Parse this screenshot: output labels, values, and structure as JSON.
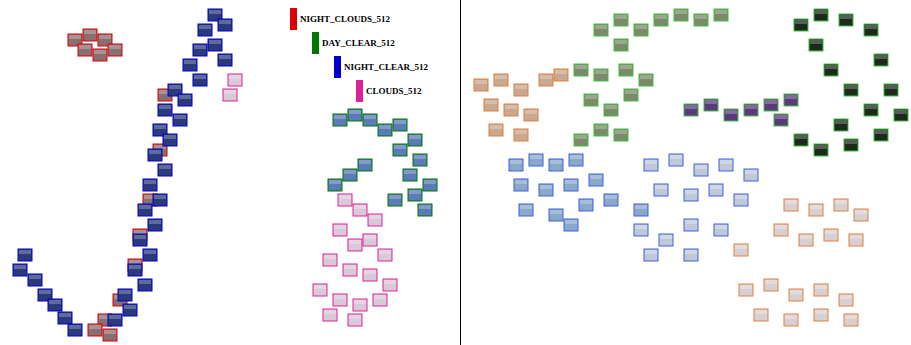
{
  "chart_data": [
    {
      "type": "scatter",
      "xlim": [
        0,
        460
      ],
      "ylim": [
        0,
        345
      ],
      "tick_labels": false,
      "legend": "top",
      "series": [
        {
          "name": "NIGHT_CLOUDS_512",
          "color": "#dd0000",
          "marker": "square",
          "x": [
            75,
            90,
            105,
            115,
            85,
            100,
            165,
            160,
            150,
            140,
            135,
            120,
            105,
            95,
            110
          ],
          "values": [
            305,
            310,
            305,
            295,
            295,
            290,
            250,
            195,
            145,
            110,
            80,
            45,
            25,
            15,
            10
          ]
        },
        {
          "name": "DAY_CLEAR_512",
          "color": "#007700",
          "marker": "square",
          "x": [
            340,
            355,
            370,
            385,
            400,
            415,
            400,
            420,
            410,
            430,
            415,
            425,
            395,
            335,
            350,
            365
          ],
          "values": [
            225,
            230,
            225,
            215,
            220,
            205,
            195,
            185,
            170,
            160,
            150,
            135,
            145,
            160,
            170,
            180
          ]
        },
        {
          "name": "NIGHT_CLEAR_512",
          "color": "#0000cc",
          "marker": "square",
          "x": [
            215,
            225,
            205,
            215,
            200,
            225,
            190,
            200,
            175,
            185,
            165,
            180,
            160,
            170,
            155,
            165,
            150,
            160,
            145,
            155,
            140,
            150,
            135,
            145,
            125,
            130,
            115,
            25,
            20,
            35,
            45,
            55,
            65,
            75
          ],
          "values": [
            330,
            320,
            315,
            300,
            295,
            285,
            280,
            265,
            255,
            245,
            235,
            225,
            215,
            205,
            190,
            175,
            160,
            145,
            135,
            120,
            105,
            90,
            75,
            60,
            50,
            35,
            25,
            90,
            75,
            65,
            50,
            40,
            27,
            15
          ]
        },
        {
          "name": "CLOUDS_512",
          "color": "#dd2299",
          "marker": "square",
          "x": [
            345,
            360,
            375,
            340,
            355,
            370,
            385,
            330,
            350,
            370,
            390,
            320,
            340,
            360,
            380,
            330,
            355,
            235,
            230
          ],
          "values": [
            145,
            135,
            125,
            115,
            100,
            105,
            90,
            85,
            75,
            70,
            60,
            55,
            45,
            40,
            45,
            30,
            25,
            265,
            250
          ]
        }
      ]
    },
    {
      "type": "scatter",
      "xlim": [
        0,
        450
      ],
      "ylim": [
        0,
        345
      ],
      "tick_labels": false,
      "series": [
        {
          "color": "#40c040",
          "marker": "square",
          "x": [
            340,
            360,
            385,
            410,
            420,
            430,
            440,
            420,
            390,
            360,
            340,
            410,
            380,
            355,
            370,
            390
          ],
          "values": [
            320,
            330,
            325,
            315,
            285,
            255,
            230,
            210,
            200,
            195,
            205,
            235,
            220,
            300,
            275,
            255
          ]
        },
        {
          "color": "#40c040",
          "marker": "square",
          "x": [
            230,
            250,
            270,
            290,
            310,
            330,
            320
          ],
          "values": [
            235,
            240,
            230,
            235,
            240,
            245,
            225
          ]
        },
        {
          "color": "#40c040",
          "marker": "square",
          "x": [
            140,
            160,
            180,
            200,
            220,
            240,
            260,
            160,
            120,
            140,
            165,
            185,
            130,
            150,
            170,
            140,
            160,
            120
          ],
          "values": [
            315,
            325,
            315,
            325,
            330,
            325,
            330,
            300,
            275,
            270,
            275,
            265,
            245,
            235,
            250,
            215,
            210,
            205
          ]
        },
        {
          "color": "#e08040",
          "marker": "square",
          "x": [
            20,
            40,
            60,
            30,
            50,
            70,
            35,
            60,
            85,
            100
          ],
          "values": [
            260,
            265,
            255,
            240,
            235,
            230,
            215,
            210,
            265,
            270
          ]
        },
        {
          "color": "#4060e0",
          "marker": "square",
          "x": [
            55,
            75,
            95,
            115,
            60,
            85,
            110,
            135,
            65,
            95,
            125,
            150,
            110,
            180
          ],
          "values": [
            180,
            185,
            180,
            185,
            160,
            155,
            160,
            165,
            135,
            130,
            140,
            145,
            120,
            135
          ]
        },
        {
          "color": "#4060e0",
          "marker": "square",
          "x": [
            190,
            215,
            240,
            265,
            290,
            200,
            230,
            255,
            280,
            180,
            205,
            230,
            260,
            190,
            230
          ],
          "values": [
            180,
            185,
            175,
            180,
            170,
            155,
            150,
            155,
            145,
            115,
            105,
            120,
            115,
            90,
            90
          ]
        },
        {
          "color": "#e08040",
          "marker": "square",
          "x": [
            330,
            355,
            380,
            400,
            320,
            345,
            370,
            395,
            285,
            310,
            335,
            360,
            385,
            300,
            330,
            360,
            390,
            280
          ],
          "values": [
            140,
            135,
            140,
            130,
            115,
            105,
            110,
            105,
            55,
            60,
            50,
            55,
            45,
            30,
            25,
            30,
            25,
            95
          ]
        }
      ]
    }
  ]
}
